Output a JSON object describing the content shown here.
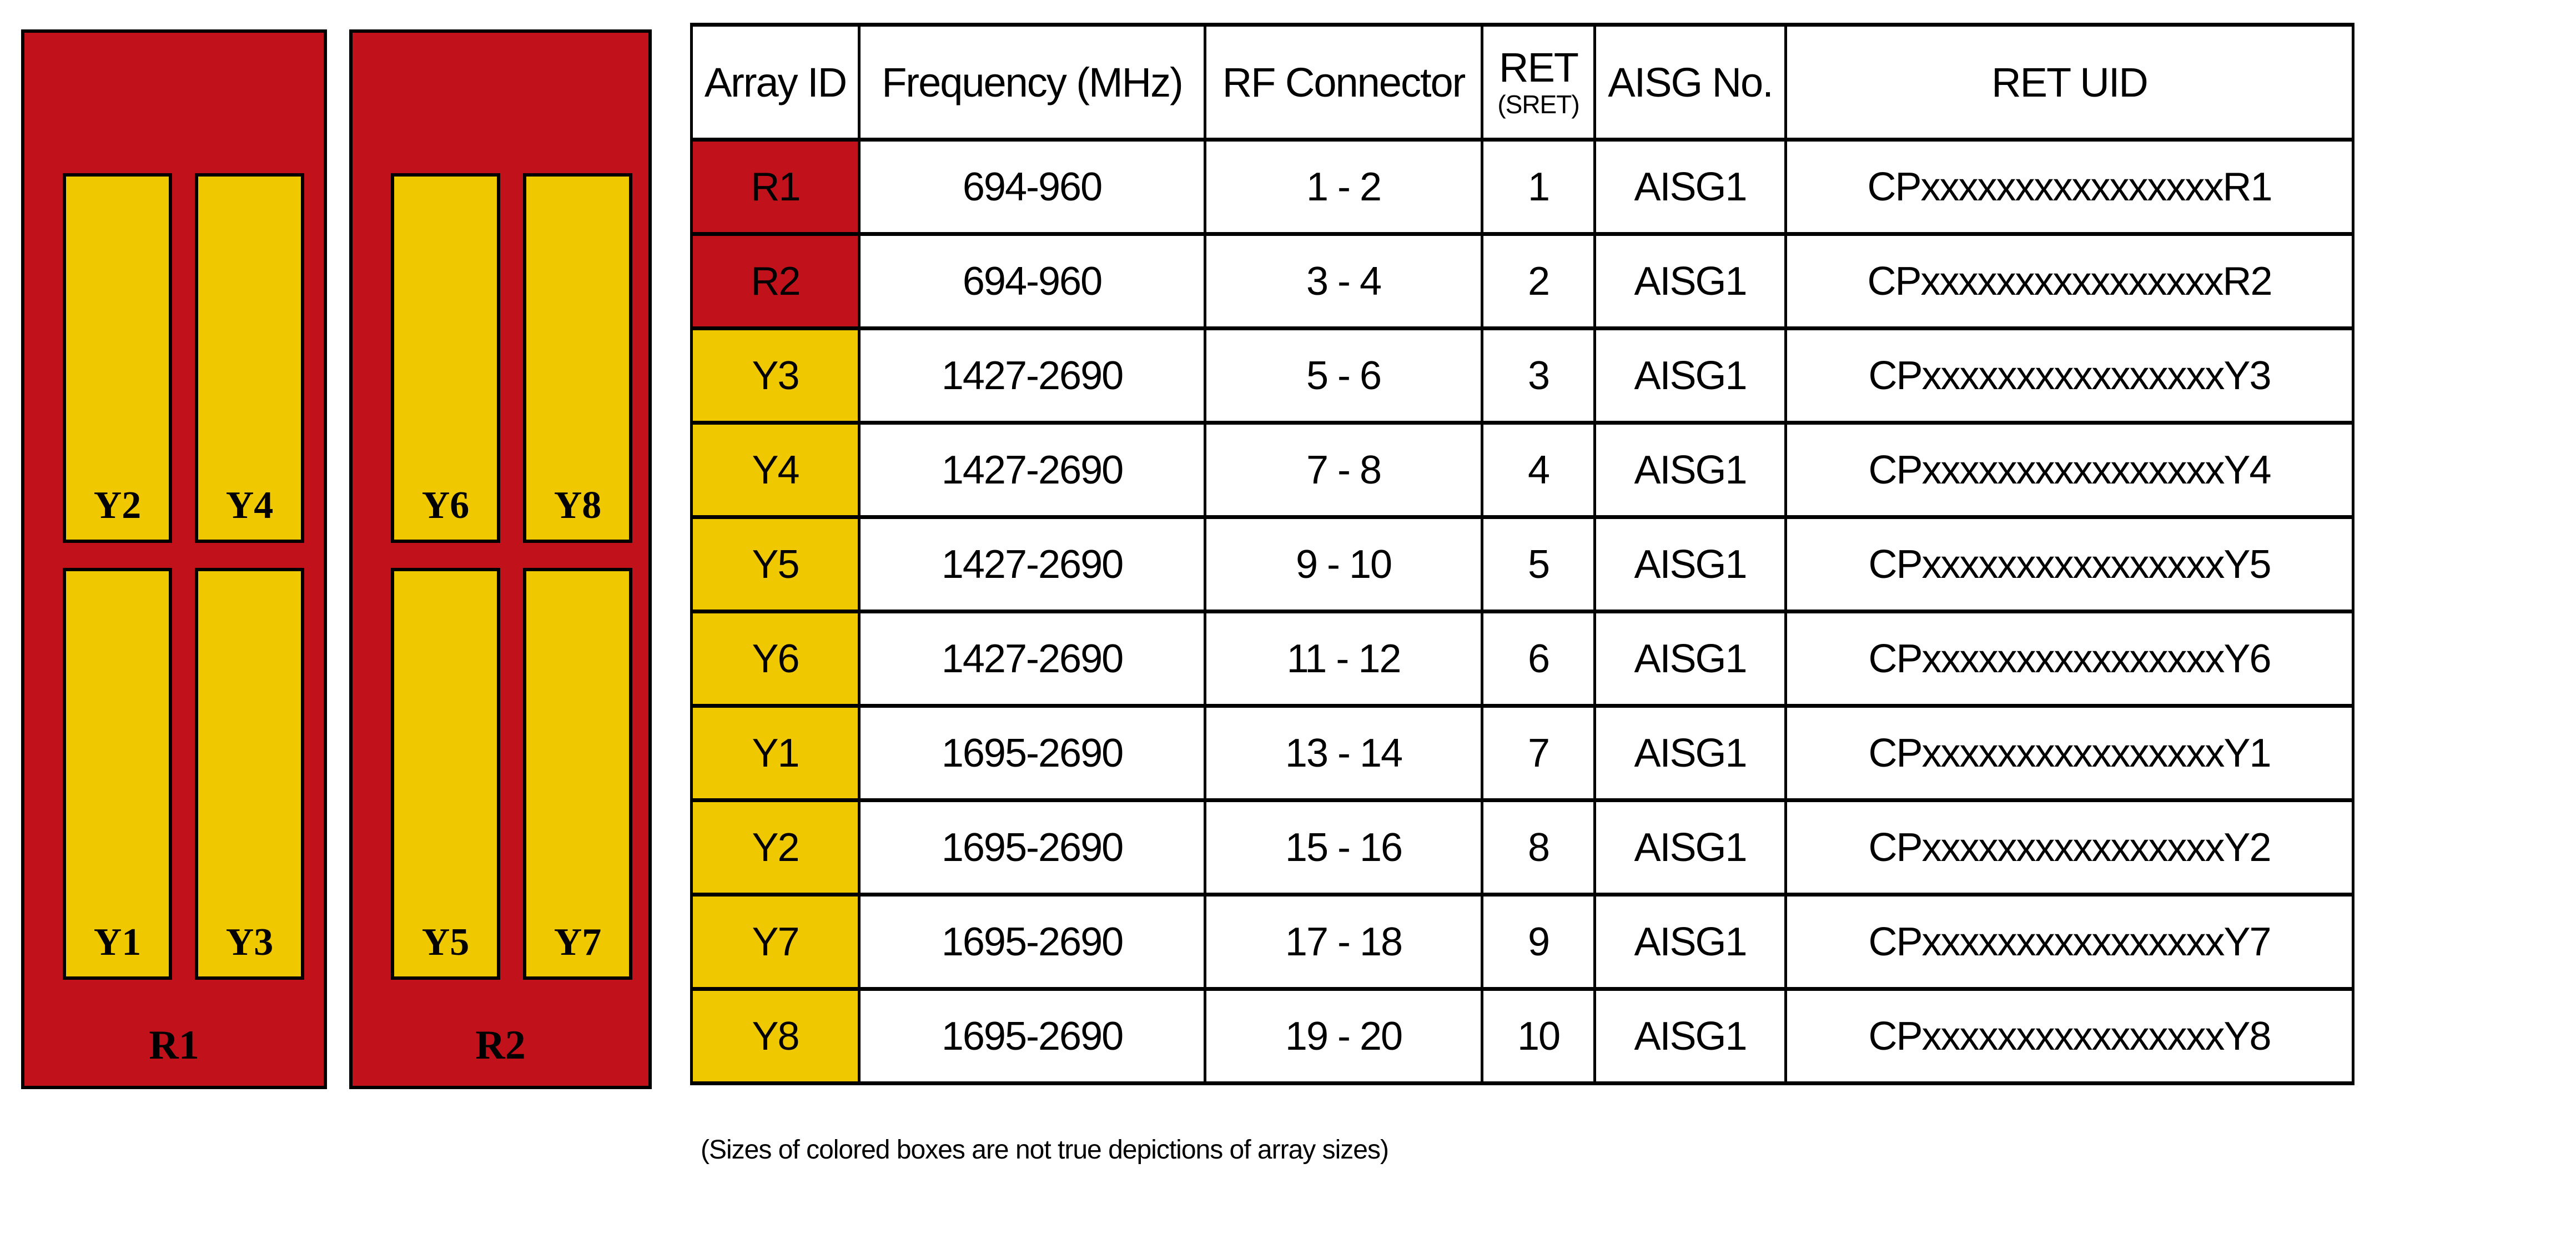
{
  "diagram": {
    "colors": {
      "panel_red": "#C1121C",
      "array_yellow": "#EFC800",
      "outline_black": "#000000"
    },
    "panels": [
      {
        "label": "R1",
        "arrays_top": [
          "Y2",
          "Y4"
        ],
        "arrays_bottom": [
          "Y1",
          "Y3"
        ]
      },
      {
        "label": "R2",
        "arrays_top": [
          "Y6",
          "Y8"
        ],
        "arrays_bottom": [
          "Y5",
          "Y7"
        ]
      }
    ]
  },
  "table": {
    "headers": {
      "array_id": "Array ID",
      "frequency": "Frequency (MHz)",
      "rf_connector": "RF Connector",
      "ret": "RET",
      "ret_sub": "(SRET)",
      "aisg_no": "AISG No.",
      "ret_uid": "RET UID"
    },
    "rows": [
      {
        "array_id": "R1",
        "id_color": "red",
        "frequency": "694-960",
        "rf_connector": "1 - 2",
        "ret": "1",
        "aisg_no": "AISG1",
        "ret_uid": "CPxxxxxxxxxxxxxxxxR1"
      },
      {
        "array_id": "R2",
        "id_color": "red",
        "frequency": "694-960",
        "rf_connector": "3 - 4",
        "ret": "2",
        "aisg_no": "AISG1",
        "ret_uid": "CPxxxxxxxxxxxxxxxxR2"
      },
      {
        "array_id": "Y3",
        "id_color": "yellow",
        "frequency": "1427-2690",
        "rf_connector": "5 - 6",
        "ret": "3",
        "aisg_no": "AISG1",
        "ret_uid": "CPxxxxxxxxxxxxxxxxY3"
      },
      {
        "array_id": "Y4",
        "id_color": "yellow",
        "frequency": "1427-2690",
        "rf_connector": "7 - 8",
        "ret": "4",
        "aisg_no": "AISG1",
        "ret_uid": "CPxxxxxxxxxxxxxxxxY4"
      },
      {
        "array_id": "Y5",
        "id_color": "yellow",
        "frequency": "1427-2690",
        "rf_connector": "9 - 10",
        "ret": "5",
        "aisg_no": "AISG1",
        "ret_uid": "CPxxxxxxxxxxxxxxxxY5"
      },
      {
        "array_id": "Y6",
        "id_color": "yellow",
        "frequency": "1427-2690",
        "rf_connector": "11 - 12",
        "ret": "6",
        "aisg_no": "AISG1",
        "ret_uid": "CPxxxxxxxxxxxxxxxxY6"
      },
      {
        "array_id": "Y1",
        "id_color": "yellow",
        "frequency": "1695-2690",
        "rf_connector": "13 - 14",
        "ret": "7",
        "aisg_no": "AISG1",
        "ret_uid": "CPxxxxxxxxxxxxxxxxY1"
      },
      {
        "array_id": "Y2",
        "id_color": "yellow",
        "frequency": "1695-2690",
        "rf_connector": "15 - 16",
        "ret": "8",
        "aisg_no": "AISG1",
        "ret_uid": "CPxxxxxxxxxxxxxxxxY2"
      },
      {
        "array_id": "Y7",
        "id_color": "yellow",
        "frequency": "1695-2690",
        "rf_connector": "17 - 18",
        "ret": "9",
        "aisg_no": "AISG1",
        "ret_uid": "CPxxxxxxxxxxxxxxxxY7"
      },
      {
        "array_id": "Y8",
        "id_color": "yellow",
        "frequency": "1695-2690",
        "rf_connector": "19 - 20",
        "ret": "10",
        "aisg_no": "AISG1",
        "ret_uid": "CPxxxxxxxxxxxxxxxxY8"
      }
    ]
  },
  "caption": "(Sizes of colored boxes are not true depictions of array sizes)"
}
